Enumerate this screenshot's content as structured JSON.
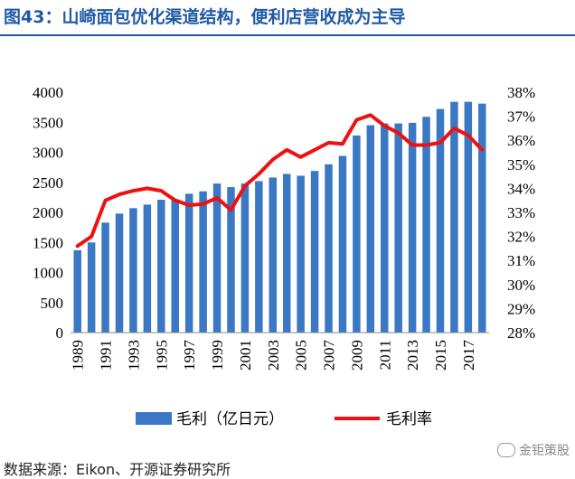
{
  "header": {
    "title": "图43：山崎面包优化渠道结构，便利店营收成为主导"
  },
  "footer": {
    "source": "数据来源：Eikon、开源证券研究所",
    "watermark": "金钜策股"
  },
  "colors": {
    "bar": "#3a78c4",
    "line": "#ee1111",
    "title": "#1f5aa6"
  },
  "chart_data": {
    "type": "bar",
    "x": [
      1989,
      1990,
      1991,
      1992,
      1993,
      1994,
      1995,
      1996,
      1997,
      1998,
      1999,
      2000,
      2001,
      2002,
      2003,
      2004,
      2005,
      2006,
      2007,
      2008,
      2009,
      2010,
      2011,
      2012,
      2013,
      2014,
      2015,
      2016,
      2017,
      2018
    ],
    "x_tick_labels": [
      "1989",
      "1991",
      "1993",
      "1995",
      "1997",
      "1999",
      "2001",
      "2003",
      "2005",
      "2007",
      "2009",
      "2011",
      "2013",
      "2015",
      "2017"
    ],
    "series": [
      {
        "name": "毛利（亿日元）",
        "type": "bar",
        "axis": "left",
        "values": [
          1370,
          1500,
          1830,
          1980,
          2070,
          2130,
          2210,
          2210,
          2310,
          2350,
          2480,
          2420,
          2480,
          2520,
          2580,
          2640,
          2610,
          2690,
          2800,
          2940,
          3280,
          3450,
          3480,
          3480,
          3490,
          3590,
          3720,
          3840,
          3840,
          3810
        ]
      },
      {
        "name": "毛利率",
        "type": "line",
        "axis": "right",
        "values": [
          31.6,
          32.0,
          33.5,
          33.75,
          33.9,
          34.0,
          33.9,
          33.5,
          33.3,
          33.35,
          33.6,
          33.1,
          34.1,
          34.6,
          35.2,
          35.6,
          35.3,
          35.6,
          35.9,
          35.85,
          36.85,
          37.05,
          36.6,
          36.3,
          35.8,
          35.8,
          35.9,
          36.5,
          36.2,
          35.6
        ]
      }
    ],
    "y_left": {
      "min": 0,
      "max": 4000,
      "ticks": [
        0,
        500,
        1000,
        1500,
        2000,
        2500,
        3000,
        3500,
        4000
      ]
    },
    "y_right": {
      "min": 28,
      "max": 38,
      "ticks": [
        28,
        29,
        30,
        31,
        32,
        33,
        34,
        35,
        36,
        37,
        38
      ],
      "unit": "%"
    },
    "legend": {
      "position": "bottom",
      "entries": [
        "毛利（亿日元）",
        "毛利率"
      ]
    }
  }
}
